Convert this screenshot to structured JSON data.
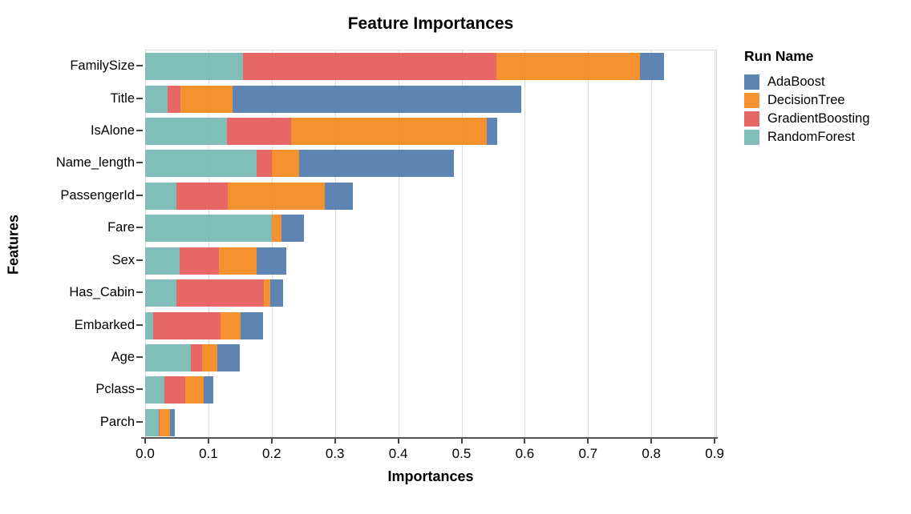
{
  "chart_data": {
    "type": "bar",
    "stacked": true,
    "orientation": "horizontal",
    "title": "Feature Importances",
    "xlabel": "Importances",
    "ylabel": "Features",
    "legend_title": "Run Name",
    "legend_position": "top-right",
    "grid": true,
    "xlim": [
      0,
      0.9
    ],
    "xticks": [
      0.0,
      0.1,
      0.2,
      0.3,
      0.4,
      0.5,
      0.6,
      0.7,
      0.8,
      0.9
    ],
    "categories": [
      "FamilySize",
      "Title",
      "IsAlone",
      "Name_length",
      "PassengerId",
      "Fare",
      "Sex",
      "Has_Cabin",
      "Embarked",
      "Age",
      "Pclass",
      "Parch"
    ],
    "series": [
      {
        "name": "AdaBoost",
        "color": "#4c78a8",
        "values": [
          0.038,
          0.456,
          0.017,
          0.245,
          0.044,
          0.036,
          0.047,
          0.02,
          0.035,
          0.035,
          0.016,
          0.008
        ]
      },
      {
        "name": "DecisionTree",
        "color": "#f58518",
        "values": [
          0.227,
          0.082,
          0.309,
          0.043,
          0.154,
          0.015,
          0.059,
          0.01,
          0.032,
          0.024,
          0.028,
          0.016
        ]
      },
      {
        "name": "GradientBoosting",
        "color": "#e45756",
        "values": [
          0.4,
          0.02,
          0.102,
          0.024,
          0.081,
          0.0,
          0.063,
          0.139,
          0.106,
          0.018,
          0.034,
          0.002
        ]
      },
      {
        "name": "RandomForest",
        "color": "#72b7b2",
        "values": [
          0.155,
          0.036,
          0.129,
          0.176,
          0.049,
          0.2,
          0.054,
          0.049,
          0.013,
          0.072,
          0.03,
          0.021
        ]
      }
    ],
    "stack_order": [
      "RandomForest",
      "GradientBoosting",
      "DecisionTree",
      "AdaBoost"
    ],
    "legend_order": [
      "AdaBoost",
      "DecisionTree",
      "GradientBoosting",
      "RandomForest"
    ],
    "totals": [
      0.82,
      0.594,
      0.557,
      0.488,
      0.328,
      0.251,
      0.223,
      0.218,
      0.186,
      0.149,
      0.108,
      0.047
    ]
  }
}
